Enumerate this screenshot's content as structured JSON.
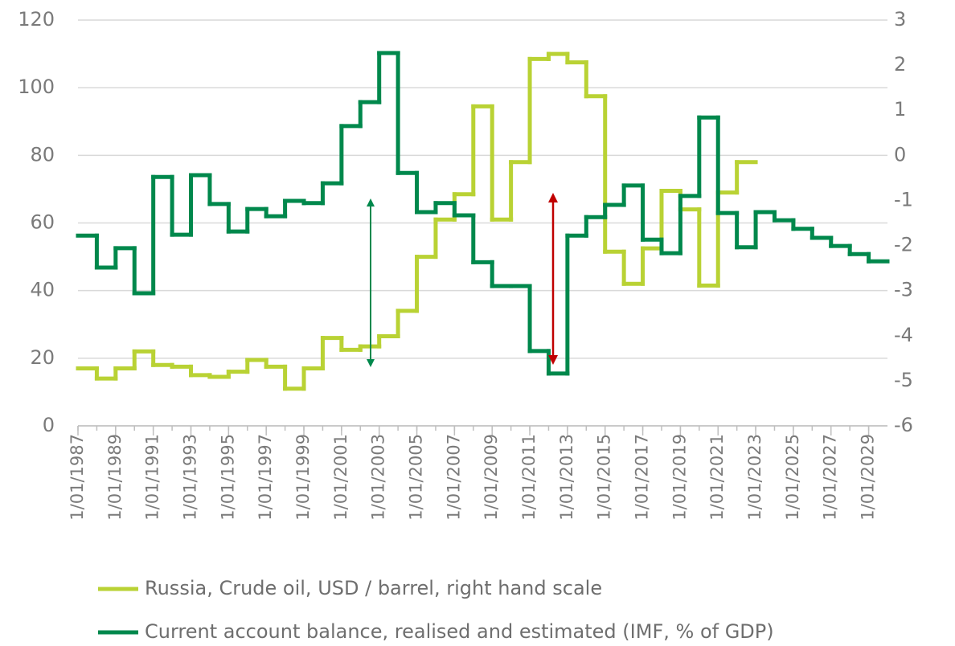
{
  "chart_data": {
    "type": "step",
    "x": [
      1987,
      1988,
      1989,
      1990,
      1991,
      1992,
      1993,
      1994,
      1995,
      1996,
      1997,
      1998,
      1999,
      2000,
      2001,
      2002,
      2003,
      2004,
      2005,
      2006,
      2007,
      2008,
      2009,
      2010,
      2011,
      2012,
      2013,
      2014,
      2015,
      2016,
      2017,
      2018,
      2019,
      2020,
      2021,
      2022,
      2023,
      2024,
      2025,
      2026,
      2027,
      2028,
      2029
    ],
    "xlim": [
      1987,
      2030
    ],
    "xticks": [
      {
        "value": 1987,
        "label": "1/01/1987"
      },
      {
        "value": 1989,
        "label": "1/01/1989"
      },
      {
        "value": 1991,
        "label": "1/01/1991"
      },
      {
        "value": 1993,
        "label": "1/01/1993"
      },
      {
        "value": 1995,
        "label": "1/01/1995"
      },
      {
        "value": 1997,
        "label": "1/01/1997"
      },
      {
        "value": 1999,
        "label": "1/01/1999"
      },
      {
        "value": 2001,
        "label": "1/01/2001"
      },
      {
        "value": 2003,
        "label": "1/01/2003"
      },
      {
        "value": 2005,
        "label": "1/01/2005"
      },
      {
        "value": 2007,
        "label": "1/01/2007"
      },
      {
        "value": 2009,
        "label": "1/01/2009"
      },
      {
        "value": 2011,
        "label": "1/01/2011"
      },
      {
        "value": 2013,
        "label": "1/01/2013"
      },
      {
        "value": 2015,
        "label": "1/01/2015"
      },
      {
        "value": 2017,
        "label": "1/01/2017"
      },
      {
        "value": 2019,
        "label": "1/01/2019"
      },
      {
        "value": 2021,
        "label": "1/01/2021"
      },
      {
        "value": 2023,
        "label": "1/01/2023"
      },
      {
        "value": 2025,
        "label": "1/01/2025"
      },
      {
        "value": 2027,
        "label": "1/01/2027"
      },
      {
        "value": 2029,
        "label": "1/01/2029"
      }
    ],
    "ylim": [
      0,
      120
    ],
    "yticks": [
      0,
      20,
      40,
      60,
      80,
      100,
      120
    ],
    "y2lim": [
      -6,
      3
    ],
    "y2ticks": [
      -6,
      -5,
      -4,
      -3,
      -2,
      -1,
      0,
      1,
      2,
      3
    ],
    "grid": true,
    "series": [
      {
        "name": "Russia, Crude oil, USD / barrel, right hand scale",
        "color": "#b9d234",
        "values": [
          17,
          14,
          17,
          22,
          18,
          17.5,
          15,
          14.5,
          16,
          19.5,
          17.5,
          11,
          17,
          26,
          22.5,
          23.5,
          26.5,
          34,
          50,
          61,
          68.5,
          94.5,
          61,
          78,
          108.5,
          110,
          107.5,
          97.5,
          51.5,
          42,
          52.5,
          69.5,
          64,
          41.5,
          69,
          78,
          null,
          null,
          null,
          null,
          null,
          null,
          null
        ]
      },
      {
        "name": "Current account balance, realised and estimated (IMF, % of GDP)",
        "color": "#00884c",
        "axis": "y2",
        "values": [
          -1.78,
          -2.49,
          -2.06,
          -3.06,
          -0.48,
          -1.76,
          -0.44,
          -1.08,
          -1.69,
          -1.19,
          -1.35,
          -1.01,
          -1.06,
          -0.62,
          0.65,
          1.18,
          2.27,
          -0.39,
          -1.26,
          -1.06,
          -1.33,
          -2.37,
          -2.9,
          -2.9,
          -4.34,
          -4.84,
          -1.78,
          -1.37,
          -1.1,
          -0.67,
          -1.87,
          -2.17,
          -0.9,
          0.84,
          -1.28,
          -2.04,
          -1.26,
          -1.44,
          -1.63,
          -1.83,
          -2.01,
          -2.19,
          -2.35
        ]
      }
    ]
  }
}
